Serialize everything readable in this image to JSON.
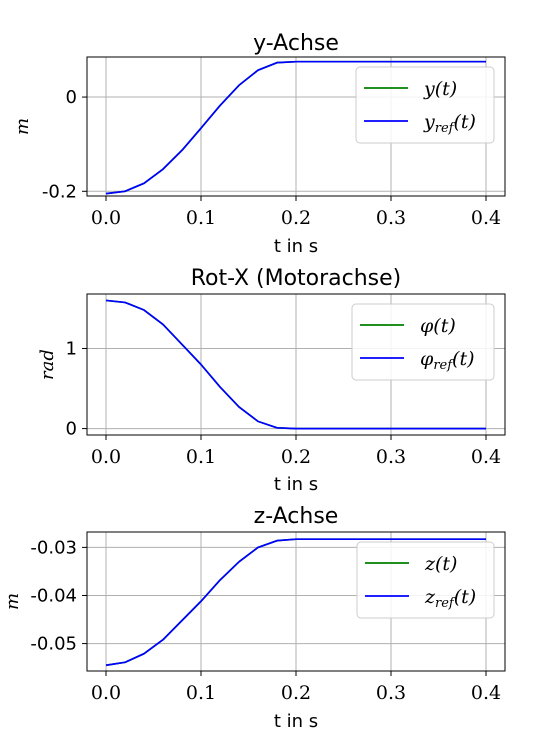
{
  "chart_data": [
    {
      "type": "line",
      "title": "y-Achse",
      "xlabel": "t in s",
      "ylabel": "m",
      "xlim": [
        -0.02,
        0.42
      ],
      "ylim": [
        -0.21,
        0.085
      ],
      "xticks": [
        0.0,
        0.1,
        0.2,
        0.3,
        0.4
      ],
      "xtick_labels": [
        "0.0",
        "0.1",
        "0.2",
        "0.3",
        "0.4"
      ],
      "yticks": [
        0,
        -0.2
      ],
      "ytick_labels": [
        "0",
        "-0.2"
      ],
      "grid": true,
      "legend": "top-right",
      "series": [
        {
          "name": "y(t)",
          "color": "#008000",
          "x": [
            0.0,
            0.02,
            0.04,
            0.06,
            0.08,
            0.1,
            0.12,
            0.14,
            0.16,
            0.18,
            0.2,
            0.4
          ],
          "y": [
            -0.205,
            -0.2,
            -0.183,
            -0.153,
            -0.113,
            -0.066,
            -0.018,
            0.025,
            0.057,
            0.073,
            0.075,
            0.075
          ]
        },
        {
          "name": "y_ref(t)",
          "color": "#0000ff",
          "x": [
            0.0,
            0.02,
            0.04,
            0.06,
            0.08,
            0.1,
            0.12,
            0.14,
            0.16,
            0.18,
            0.2,
            0.4
          ],
          "y": [
            -0.205,
            -0.2,
            -0.183,
            -0.153,
            -0.113,
            -0.066,
            -0.018,
            0.025,
            0.057,
            0.073,
            0.075,
            0.075
          ]
        }
      ]
    },
    {
      "type": "line",
      "title": "Rot-X (Motorachse)",
      "xlabel": "t in s",
      "ylabel": "rad",
      "xlim": [
        -0.02,
        0.42
      ],
      "ylim": [
        -0.08,
        1.68
      ],
      "xticks": [
        0.0,
        0.1,
        0.2,
        0.3,
        0.4
      ],
      "xtick_labels": [
        "0.0",
        "0.1",
        "0.2",
        "0.3",
        "0.4"
      ],
      "yticks": [
        1,
        0
      ],
      "ytick_labels": [
        "1",
        "0"
      ],
      "grid": true,
      "legend": "top-right",
      "series": [
        {
          "name": "φ(t)",
          "color": "#008000",
          "x": [
            0.0,
            0.02,
            0.04,
            0.06,
            0.08,
            0.1,
            0.12,
            0.14,
            0.16,
            0.18,
            0.2,
            0.4
          ],
          "y": [
            1.6,
            1.575,
            1.48,
            1.3,
            1.05,
            0.8,
            0.52,
            0.27,
            0.09,
            0.01,
            0.0,
            0.0
          ]
        },
        {
          "name": "φ_ref(t)",
          "color": "#0000ff",
          "x": [
            0.0,
            0.02,
            0.04,
            0.06,
            0.08,
            0.1,
            0.12,
            0.14,
            0.16,
            0.18,
            0.2,
            0.4
          ],
          "y": [
            1.6,
            1.575,
            1.48,
            1.3,
            1.05,
            0.8,
            0.52,
            0.27,
            0.09,
            0.01,
            0.0,
            0.0
          ]
        }
      ]
    },
    {
      "type": "line",
      "title": "z-Achse",
      "xlabel": "t in s",
      "ylabel": "m",
      "xlim": [
        -0.02,
        0.42
      ],
      "ylim": [
        -0.0557,
        -0.0268
      ],
      "xticks": [
        0.0,
        0.1,
        0.2,
        0.3,
        0.4
      ],
      "xtick_labels": [
        "0.0",
        "0.1",
        "0.2",
        "0.3",
        "0.4"
      ],
      "yticks": [
        -0.03,
        -0.04,
        -0.05
      ],
      "ytick_labels": [
        "-0.03",
        "-0.04",
        "-0.05"
      ],
      "grid": true,
      "legend": "top-right",
      "series": [
        {
          "name": "z(t)",
          "color": "#008000",
          "x": [
            0.0,
            0.02,
            0.04,
            0.06,
            0.08,
            0.1,
            0.12,
            0.14,
            0.16,
            0.18,
            0.2,
            0.4
          ],
          "y": [
            -0.0545,
            -0.0539,
            -0.0521,
            -0.0492,
            -0.0452,
            -0.0412,
            -0.0368,
            -0.033,
            -0.03,
            -0.0286,
            -0.0283,
            -0.0283
          ]
        },
        {
          "name": "z_ref(t)",
          "color": "#0000ff",
          "x": [
            0.0,
            0.02,
            0.04,
            0.06,
            0.08,
            0.1,
            0.12,
            0.14,
            0.16,
            0.18,
            0.2,
            0.4
          ],
          "y": [
            -0.0545,
            -0.0539,
            -0.0521,
            -0.0492,
            -0.0452,
            -0.0412,
            -0.0368,
            -0.033,
            -0.03,
            -0.0286,
            -0.0283,
            -0.0283
          ]
        }
      ]
    }
  ],
  "legend_labels": [
    [
      {
        "base": "y(t)",
        "sub": ""
      },
      {
        "base": "y",
        "sub": "ref",
        "tail": "(t)"
      }
    ],
    [
      {
        "base": "φ(t)",
        "sub": ""
      },
      {
        "base": "φ",
        "sub": "ref",
        "tail": "(t)"
      }
    ],
    [
      {
        "base": "z(t)",
        "sub": ""
      },
      {
        "base": "z",
        "sub": "ref",
        "tail": "(t)"
      }
    ]
  ]
}
